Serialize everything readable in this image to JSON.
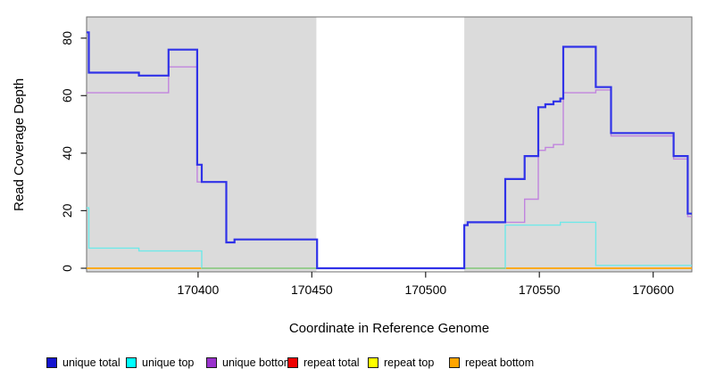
{
  "chart_data": {
    "type": "line",
    "subtype": "step-after",
    "title": "",
    "xlabel": "Coordinate in Reference Genome",
    "ylabel": "Read Coverage Depth",
    "xlim": [
      170351,
      170617
    ],
    "ylim": [
      0,
      87.5
    ],
    "x_ticks": [
      "170400",
      "170450",
      "170500",
      "170550",
      "170600"
    ],
    "x_tick_values": [
      170400,
      170450,
      170500,
      170550,
      170600
    ],
    "y_ticks": [
      "0",
      "20",
      "40",
      "60",
      "80"
    ],
    "y_tick_values": [
      0,
      20,
      40,
      60,
      80
    ],
    "grid": false,
    "legend_position": "bottom",
    "background_bands": [
      {
        "x0": 170351,
        "x1": 170452,
        "color": "#dbdbdb"
      },
      {
        "x0": 170517,
        "x1": 170617,
        "color": "#dbdbdb"
      }
    ],
    "baseline_blend_segment": {
      "color": "#8fcb8f",
      "from": 170401.6,
      "to": 170535,
      "y": 0
    },
    "series": [
      {
        "name": "unique total",
        "swatch_color": "#1414cf",
        "line_color": "#3032e8",
        "line_width": 2.2,
        "points": [
          [
            170351,
            82
          ],
          [
            170352,
            68
          ],
          [
            170374,
            67
          ],
          [
            170387,
            76
          ],
          [
            170399.6,
            36
          ],
          [
            170401.6,
            30
          ],
          [
            170412.4,
            9
          ],
          [
            170416,
            10
          ],
          [
            170452.3,
            0
          ],
          [
            170517,
            15
          ],
          [
            170518.5,
            16
          ],
          [
            170535,
            31
          ],
          [
            170543.5,
            39
          ],
          [
            170549.5,
            56
          ],
          [
            170552.6,
            57
          ],
          [
            170556.2,
            58
          ],
          [
            170559.2,
            59
          ],
          [
            170560.5,
            77
          ],
          [
            170574.8,
            63
          ],
          [
            170581.5,
            47
          ],
          [
            170609,
            39
          ],
          [
            170615.2,
            19
          ]
        ]
      },
      {
        "name": "unique top",
        "swatch_color": "#00ffff",
        "line_color": "#6fe9e9",
        "line_width": 1.4,
        "points": [
          [
            170351,
            21
          ],
          [
            170352,
            7
          ],
          [
            170374,
            6
          ],
          [
            170401.6,
            0
          ],
          [
            170535,
            15
          ],
          [
            170559.2,
            16
          ],
          [
            170574.8,
            1
          ]
        ]
      },
      {
        "name": "unique bottom",
        "swatch_color": "#9932cc",
        "line_color": "#c184de",
        "line_width": 1.4,
        "points": [
          [
            170351,
            61
          ],
          [
            170387,
            70
          ],
          [
            170399.6,
            30
          ],
          [
            170412.4,
            9
          ],
          [
            170416,
            10
          ],
          [
            170452.3,
            0
          ],
          [
            170517,
            15
          ],
          [
            170518.5,
            16
          ],
          [
            170543.5,
            24
          ],
          [
            170549.5,
            41
          ],
          [
            170552.6,
            42
          ],
          [
            170556.2,
            43
          ],
          [
            170560.5,
            61
          ],
          [
            170574.8,
            62
          ],
          [
            170581.5,
            46
          ],
          [
            170609,
            38
          ],
          [
            170615.2,
            18
          ]
        ]
      },
      {
        "name": "repeat total",
        "swatch_color": "#ee0000",
        "line_color": "#ee0000",
        "line_width": 1.2,
        "points": [
          [
            170351,
            0
          ]
        ]
      },
      {
        "name": "repeat top",
        "swatch_color": "#ffff00",
        "line_color": "#ffff00",
        "line_width": 1.2,
        "points": [
          [
            170351,
            0
          ]
        ]
      },
      {
        "name": "repeat bottom",
        "swatch_color": "#ffa500",
        "line_color": "#ffa500",
        "line_width": 1.5,
        "points": [
          [
            170351,
            0
          ]
        ]
      }
    ]
  }
}
